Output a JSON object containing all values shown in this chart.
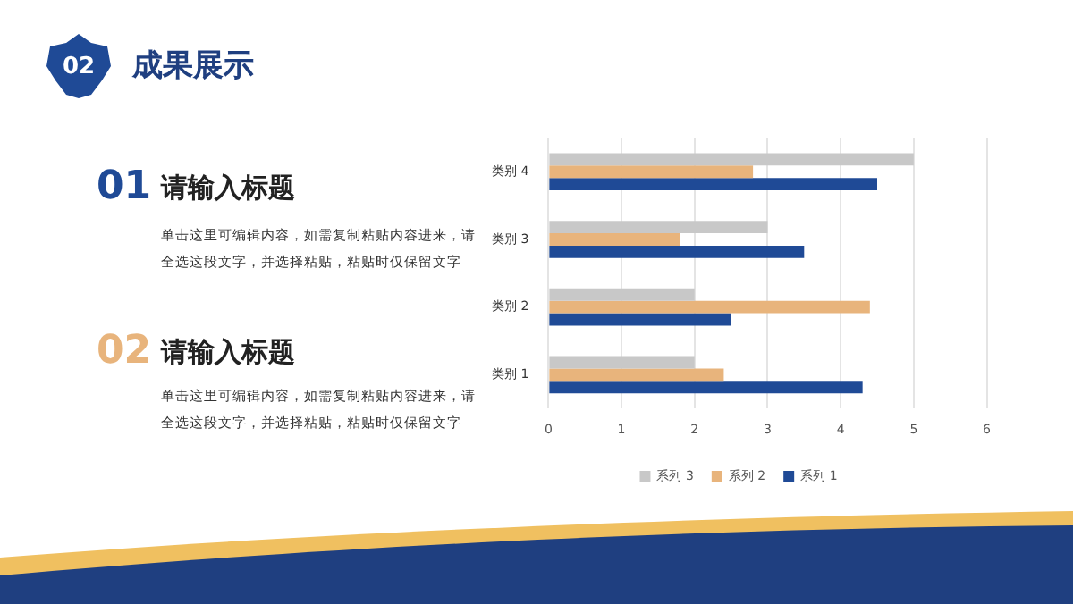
{
  "chart_data": {
    "type": "bar",
    "orientation": "horizontal",
    "title": "成果展示",
    "annotations": [
      "02",
      "01",
      "请输入标题",
      "单击这里可编辑内容，如需复制粘贴内容进来，请全选这段文字，并选择粘贴，粘贴时仅保留文字",
      "02",
      "请输入标题",
      "单击这里可编辑内容，如需复制粘贴内容进来，请全选这段文字，并选择粘贴，粘贴时仅保留文字"
    ],
    "categories": [
      "类别 4",
      "类别 3",
      "类别 2",
      "类别 1"
    ],
    "series": [
      {
        "name": "系列 3",
        "color": "#c8c8c8",
        "values": [
          5,
          3,
          2,
          2
        ]
      },
      {
        "name": "系列 2",
        "color": "#e8b47c",
        "values": [
          2.8,
          1.8,
          4.4,
          2.4
        ]
      },
      {
        "name": "系列 1",
        "color": "#1f4a96",
        "values": [
          4.5,
          3.5,
          2.5,
          4.3
        ]
      }
    ],
    "xlim": [
      0,
      6
    ],
    "xticks": [
      0,
      1,
      2,
      3,
      4,
      5,
      6
    ],
    "grid": "x",
    "legend": "bottom"
  }
}
